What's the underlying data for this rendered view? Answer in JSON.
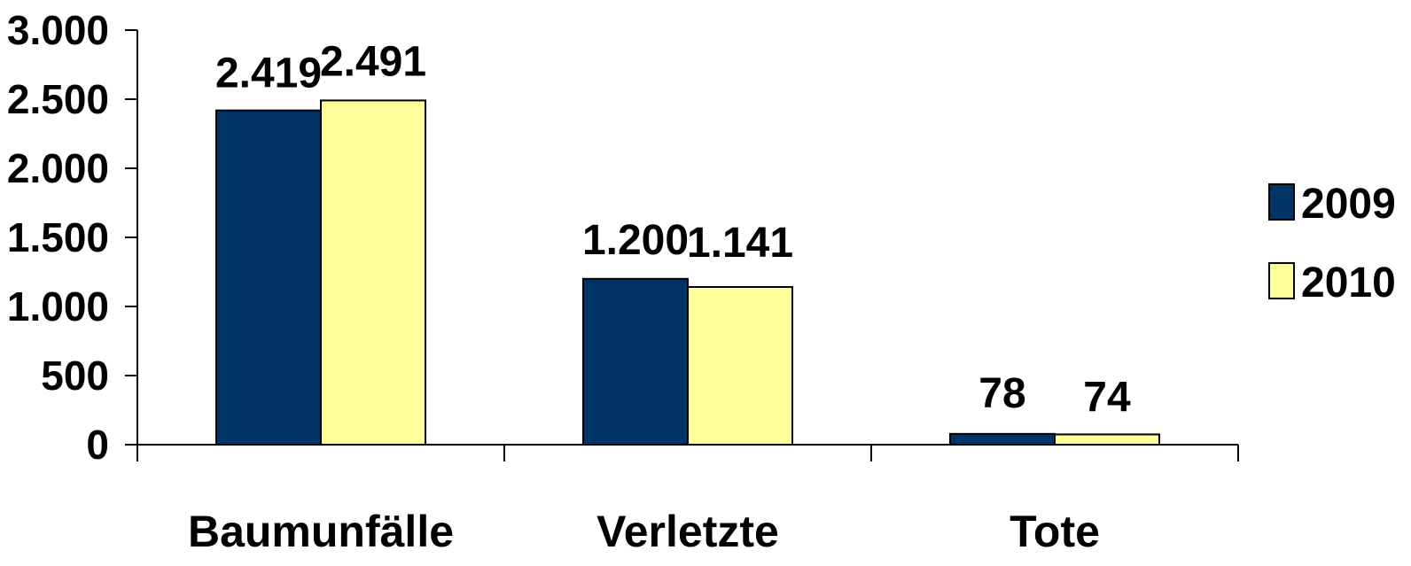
{
  "chart_data": {
    "type": "bar",
    "categories": [
      "Baumunfälle",
      "Verletzte",
      "Tote"
    ],
    "series": [
      {
        "name": "2009",
        "values": [
          2419,
          1200,
          78
        ],
        "labels": [
          "2.419",
          "1.200",
          "78"
        ],
        "color": "#003366"
      },
      {
        "name": "2010",
        "values": [
          2491,
          1141,
          74
        ],
        "labels": [
          "2.491",
          "1.141",
          "74"
        ],
        "color": "#FFFF99"
      }
    ],
    "title": "",
    "xlabel": "",
    "ylabel": "",
    "ylim": [
      0,
      3000
    ],
    "yticks": [
      0,
      500,
      1000,
      1500,
      2000,
      2500,
      3000
    ],
    "ytick_labels": [
      "0",
      "500",
      "1.000",
      "1.500",
      "2.000",
      "2.500",
      "3.000"
    ],
    "grid": false,
    "legend_position": "right"
  }
}
